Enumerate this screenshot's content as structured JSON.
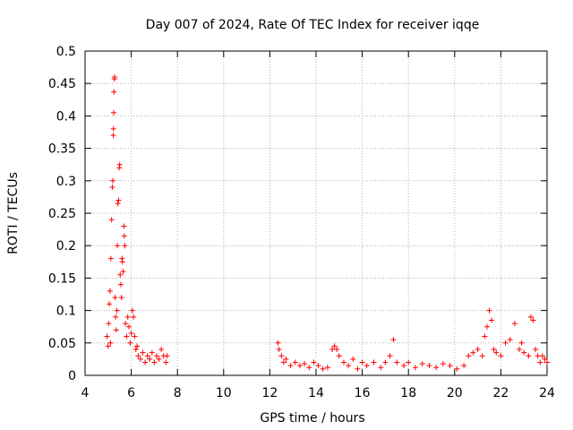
{
  "chart_data": {
    "type": "scatter",
    "title": "Day 007 of 2024, Rate Of TEC Index for receiver iqqe",
    "xlabel": "GPS time / hours",
    "ylabel": "ROTI / TECUs",
    "xlim": [
      4,
      24
    ],
    "ylim": [
      0,
      0.5
    ],
    "x_ticks": [
      4,
      6,
      8,
      10,
      12,
      14,
      16,
      18,
      20,
      22,
      24
    ],
    "x_tick_labels": [
      "4",
      "6",
      "8",
      "10",
      "12",
      "14",
      "16",
      "18",
      "20",
      "22",
      "24"
    ],
    "y_ticks": [
      0,
      0.05,
      0.1,
      0.15,
      0.2,
      0.25,
      0.3,
      0.35,
      0.4,
      0.45,
      0.5
    ],
    "y_tick_labels": [
      "0",
      "0.05",
      "0.1",
      "0.15",
      "0.2",
      "0.25",
      "0.3",
      "0.35",
      "0.4",
      "0.45",
      "0.5"
    ],
    "grid": true,
    "marker": "+",
    "color": "#ff0000",
    "series": [
      {
        "name": "ROTI",
        "points": [
          [
            4.95,
            0.06
          ],
          [
            5.0,
            0.045
          ],
          [
            5.02,
            0.08
          ],
          [
            5.05,
            0.11
          ],
          [
            5.08,
            0.13
          ],
          [
            5.1,
            0.05
          ],
          [
            5.12,
            0.18
          ],
          [
            5.15,
            0.24
          ],
          [
            5.18,
            0.29
          ],
          [
            5.2,
            0.3
          ],
          [
            5.22,
            0.37
          ],
          [
            5.23,
            0.38
          ],
          [
            5.24,
            0.405
          ],
          [
            5.25,
            0.437
          ],
          [
            5.27,
            0.457
          ],
          [
            5.28,
            0.46
          ],
          [
            5.3,
            0.12
          ],
          [
            5.32,
            0.09
          ],
          [
            5.35,
            0.07
          ],
          [
            5.38,
            0.1
          ],
          [
            5.4,
            0.2
          ],
          [
            5.42,
            0.265
          ],
          [
            5.45,
            0.27
          ],
          [
            5.48,
            0.32
          ],
          [
            5.5,
            0.325
          ],
          [
            5.52,
            0.155
          ],
          [
            5.55,
            0.14
          ],
          [
            5.58,
            0.12
          ],
          [
            5.6,
            0.18
          ],
          [
            5.62,
            0.175
          ],
          [
            5.65,
            0.16
          ],
          [
            5.68,
            0.23
          ],
          [
            5.7,
            0.215
          ],
          [
            5.72,
            0.2
          ],
          [
            5.75,
            0.08
          ],
          [
            5.8,
            0.06
          ],
          [
            5.85,
            0.09
          ],
          [
            5.9,
            0.075
          ],
          [
            5.95,
            0.05
          ],
          [
            6.0,
            0.065
          ],
          [
            6.05,
            0.1
          ],
          [
            6.1,
            0.09
          ],
          [
            6.15,
            0.06
          ],
          [
            6.2,
            0.04
          ],
          [
            6.25,
            0.045
          ],
          [
            6.3,
            0.03
          ],
          [
            6.4,
            0.025
          ],
          [
            6.5,
            0.035
          ],
          [
            6.6,
            0.02
          ],
          [
            6.7,
            0.03
          ],
          [
            6.8,
            0.025
          ],
          [
            6.9,
            0.035
          ],
          [
            7.0,
            0.02
          ],
          [
            7.1,
            0.03
          ],
          [
            7.2,
            0.025
          ],
          [
            7.3,
            0.04
          ],
          [
            7.4,
            0.03
          ],
          [
            7.5,
            0.02
          ],
          [
            7.55,
            0.03
          ],
          [
            12.35,
            0.05
          ],
          [
            12.4,
            0.04
          ],
          [
            12.5,
            0.03
          ],
          [
            12.6,
            0.02
          ],
          [
            12.7,
            0.025
          ],
          [
            12.9,
            0.015
          ],
          [
            13.1,
            0.02
          ],
          [
            13.3,
            0.015
          ],
          [
            13.5,
            0.018
          ],
          [
            13.7,
            0.012
          ],
          [
            13.9,
            0.02
          ],
          [
            14.1,
            0.015
          ],
          [
            14.3,
            0.01
          ],
          [
            14.5,
            0.012
          ],
          [
            14.7,
            0.04
          ],
          [
            14.8,
            0.045
          ],
          [
            14.9,
            0.04
          ],
          [
            15.0,
            0.03
          ],
          [
            15.2,
            0.02
          ],
          [
            15.4,
            0.015
          ],
          [
            15.6,
            0.025
          ],
          [
            15.8,
            0.01
          ],
          [
            16.0,
            0.02
          ],
          [
            16.2,
            0.015
          ],
          [
            16.5,
            0.02
          ],
          [
            16.8,
            0.012
          ],
          [
            17.0,
            0.02
          ],
          [
            17.2,
            0.03
          ],
          [
            17.35,
            0.055
          ],
          [
            17.5,
            0.02
          ],
          [
            17.8,
            0.015
          ],
          [
            18.0,
            0.02
          ],
          [
            18.3,
            0.012
          ],
          [
            18.6,
            0.018
          ],
          [
            18.9,
            0.015
          ],
          [
            19.2,
            0.012
          ],
          [
            19.5,
            0.018
          ],
          [
            19.8,
            0.015
          ],
          [
            20.1,
            0.01
          ],
          [
            20.4,
            0.015
          ],
          [
            20.6,
            0.03
          ],
          [
            20.8,
            0.035
          ],
          [
            21.0,
            0.04
          ],
          [
            21.2,
            0.03
          ],
          [
            21.3,
            0.06
          ],
          [
            21.4,
            0.075
          ],
          [
            21.5,
            0.1
          ],
          [
            21.6,
            0.085
          ],
          [
            21.7,
            0.04
          ],
          [
            21.8,
            0.035
          ],
          [
            22.0,
            0.03
          ],
          [
            22.2,
            0.05
          ],
          [
            22.4,
            0.055
          ],
          [
            22.6,
            0.08
          ],
          [
            22.8,
            0.04
          ],
          [
            22.9,
            0.05
          ],
          [
            23.0,
            0.035
          ],
          [
            23.2,
            0.03
          ],
          [
            23.3,
            0.09
          ],
          [
            23.4,
            0.085
          ],
          [
            23.5,
            0.04
          ],
          [
            23.6,
            0.03
          ],
          [
            23.7,
            0.02
          ],
          [
            23.8,
            0.03
          ],
          [
            23.9,
            0.025
          ],
          [
            24.0,
            0.02
          ]
        ]
      }
    ]
  }
}
